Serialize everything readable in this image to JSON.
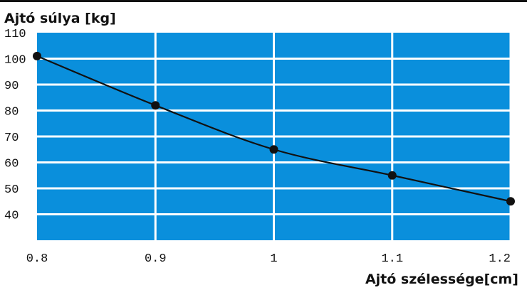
{
  "chart_data": {
    "type": "line",
    "ylabel": "Ajtó súlya [kg]",
    "xlabel": "Ajtó szélessége[cm]",
    "x": [
      0.8,
      0.9,
      1,
      1.1,
      1.2
    ],
    "x_tick_labels": [
      "0.8",
      "0.9",
      "1",
      "1.1",
      "1.2"
    ],
    "y": [
      101,
      82,
      65,
      55,
      45
    ],
    "y_ticks": [
      40,
      50,
      60,
      70,
      80,
      90,
      100,
      110
    ],
    "xlim": [
      0.8,
      1.2
    ],
    "ylim": [
      30,
      110
    ],
    "grid": true,
    "colors": {
      "plot_background": "#0a8fdc",
      "grid": "#ffffff",
      "line": "#111111",
      "marker": "#111111"
    }
  }
}
